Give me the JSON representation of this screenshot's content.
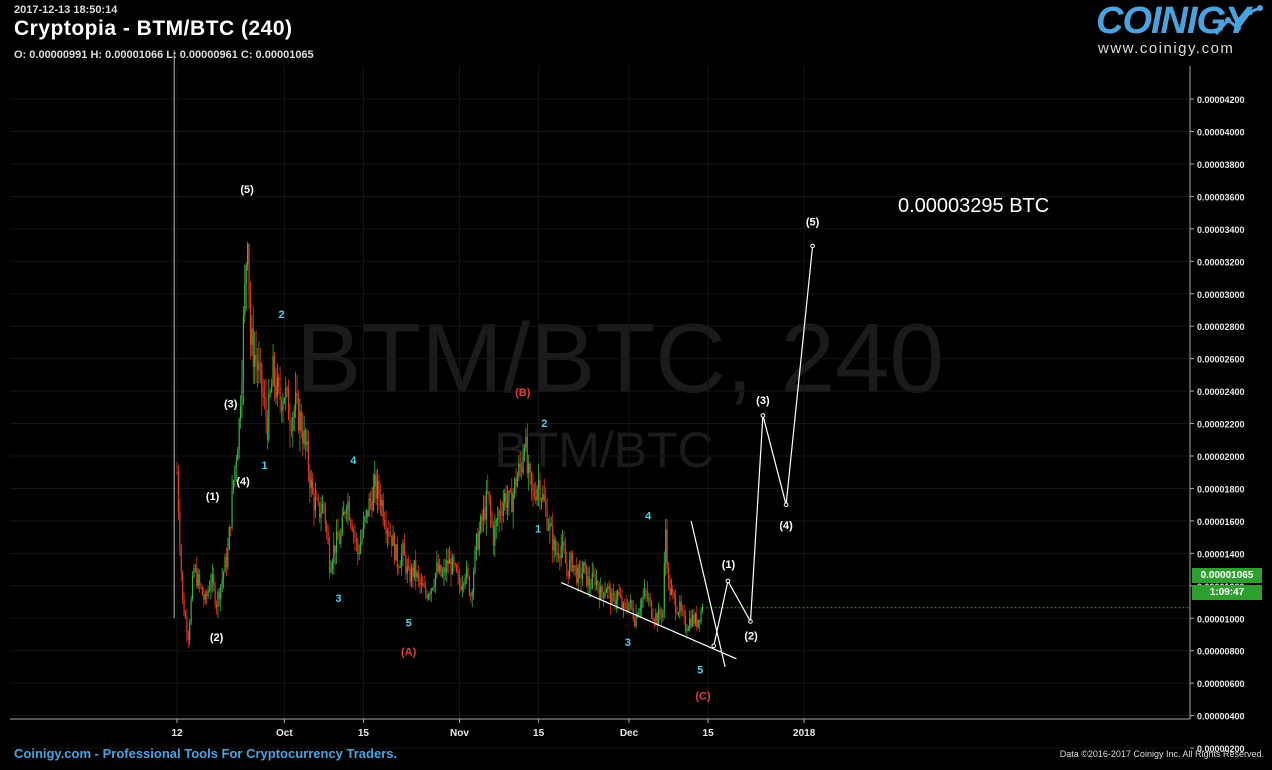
{
  "header": {
    "timestamp": "2017-12-13 18:50:14",
    "title": "Cryptopia - BTM/BTC (240)",
    "ohlc": "O: 0.00000991 H: 0.00001066 L: 0.00000961 C: 0.00001065"
  },
  "logo": {
    "word": "COINIGY",
    "url": "www.coinigy.com"
  },
  "watermark": {
    "main": "BTM/BTC, 240",
    "sub": "BTM/BTC"
  },
  "footer": {
    "left": "Coinigy.com - Professional Tools For Cryptocurrency Traders.",
    "right": "Data ©2016-2017 Coinigy Inc. All Rights Reserved."
  },
  "price_tag": {
    "current": "0.00001065",
    "countdown": "1:09:47"
  },
  "target_label": "0.00003295 BTC",
  "colors": {
    "up": "#3db33d",
    "down": "#e23a1e",
    "wave_blue": "#4fd3e6",
    "wave_red": "#e0403a",
    "accent": "#4aa3df",
    "tag": "#2ea02e"
  },
  "chart_data": {
    "type": "candlestick",
    "ylim": [
      2e-06,
      4.2e-05
    ],
    "y_ticks": [
      "0.00000200",
      "0.00000400",
      "0.00000600",
      "0.00000800",
      "0.00001000",
      "0.00001200",
      "0.00001400",
      "0.00001600",
      "0.00001800",
      "0.00002000",
      "0.00002200",
      "0.00002400",
      "0.00002600",
      "0.00002800",
      "0.00003000",
      "0.00003200",
      "0.00003400",
      "0.00003600",
      "0.00003800",
      "0.00004000",
      "0.00004200"
    ],
    "x_ticks": [
      {
        "label": "12",
        "day": 0
      },
      {
        "label": "Oct",
        "day": 19
      },
      {
        "label": "15",
        "day": 33
      },
      {
        "label": "Nov",
        "day": 50
      },
      {
        "label": "15",
        "day": 64
      },
      {
        "label": "Dec",
        "day": 80
      },
      {
        "label": "15",
        "day": 94
      },
      {
        "label": "2018",
        "day": 111
      }
    ],
    "price_path": [
      [
        0,
        19.0
      ],
      [
        1,
        11.0
      ],
      [
        2,
        9.0
      ],
      [
        3,
        13.0
      ],
      [
        5,
        11.0
      ],
      [
        6,
        12.5
      ],
      [
        7,
        11.0
      ],
      [
        8,
        12.5
      ],
      [
        9,
        14.0
      ],
      [
        10,
        18.5
      ],
      [
        11,
        22.0
      ],
      [
        12,
        30.0
      ],
      [
        12.5,
        34.5
      ],
      [
        13,
        27.0
      ],
      [
        14,
        26.0
      ],
      [
        15,
        24.0
      ],
      [
        16,
        22.0
      ],
      [
        17,
        25.0
      ],
      [
        18,
        23.5
      ],
      [
        19,
        24.0
      ],
      [
        20,
        22.5
      ],
      [
        21,
        23.0
      ],
      [
        22,
        22.0
      ],
      [
        23,
        20.0
      ],
      [
        24,
        17.5
      ],
      [
        25,
        16.5
      ],
      [
        26,
        17.0
      ],
      [
        27,
        13.5
      ],
      [
        28,
        14.5
      ],
      [
        29,
        15.0
      ],
      [
        30,
        17.5
      ],
      [
        31,
        16.0
      ],
      [
        32,
        14.0
      ],
      [
        33,
        15.5
      ],
      [
        34,
        17.0
      ],
      [
        35,
        18.0
      ],
      [
        36,
        17.5
      ],
      [
        37,
        16.0
      ],
      [
        38,
        15.0
      ],
      [
        39,
        13.5
      ],
      [
        40,
        14.0
      ],
      [
        41,
        12.5
      ],
      [
        42,
        13.0
      ],
      [
        43,
        12.0
      ],
      [
        44,
        11.5
      ],
      [
        45,
        12.0
      ],
      [
        46,
        13.0
      ],
      [
        47,
        12.5
      ],
      [
        48,
        13.5
      ],
      [
        49,
        13.0
      ],
      [
        50,
        12.0
      ],
      [
        51,
        13.0
      ],
      [
        52,
        11.5
      ],
      [
        53,
        14.5
      ],
      [
        54,
        16.0
      ],
      [
        55,
        17.5
      ],
      [
        56,
        15.0
      ],
      [
        57,
        16.5
      ],
      [
        58,
        17.5
      ],
      [
        59,
        17.0
      ],
      [
        60,
        18.5
      ],
      [
        61,
        19.5
      ],
      [
        61.5,
        21.5
      ],
      [
        62,
        19.0
      ],
      [
        63,
        17.5
      ],
      [
        64,
        18.5
      ],
      [
        65,
        17.0
      ],
      [
        66,
        15.5
      ],
      [
        67,
        14.0
      ],
      [
        68,
        14.5
      ],
      [
        69,
        13.0
      ],
      [
        70,
        13.5
      ],
      [
        71,
        12.5
      ],
      [
        72,
        13.0
      ],
      [
        73,
        12.0
      ],
      [
        74,
        12.5
      ],
      [
        75,
        11.5
      ],
      [
        76,
        12.0
      ],
      [
        77,
        11.0
      ],
      [
        78,
        11.5
      ],
      [
        79,
        10.5
      ],
      [
        80,
        11.0
      ],
      [
        81,
        10.0
      ],
      [
        82,
        11.0
      ],
      [
        83,
        11.5
      ],
      [
        84,
        10.5
      ],
      [
        85,
        10.0
      ],
      [
        86,
        10.5
      ],
      [
        86.5,
        15.5
      ],
      [
        87,
        12.0
      ],
      [
        88,
        11.0
      ],
      [
        89,
        10.5
      ],
      [
        90,
        9.5
      ],
      [
        91,
        10.0
      ],
      [
        92,
        9.8
      ],
      [
        93,
        10.65
      ]
    ],
    "wave_lines": [
      {
        "points": [
          [
            91,
            16.0
          ],
          [
            97,
            7.0
          ]
        ],
        "color": "#ffffff"
      },
      {
        "points": [
          [
            68,
            12.2
          ],
          [
            99,
            7.5
          ]
        ],
        "color": "#ffffff"
      },
      {
        "points": [
          [
            95,
            8.3
          ],
          [
            97.5,
            12.3
          ],
          [
            101.5,
            9.8
          ],
          [
            103.7,
            22.5
          ],
          [
            107.8,
            17.0
          ],
          [
            112.5,
            32.95
          ]
        ],
        "color": "#ffffff"
      }
    ],
    "wave_labels": [
      {
        "text": "(5)",
        "day": 12.4,
        "price": 36.2,
        "color": "#ffffff"
      },
      {
        "text": "(1)",
        "day": 6.3,
        "price": 17.3,
        "color": "#ffffff"
      },
      {
        "text": "(2)",
        "day": 7.0,
        "price": 8.6,
        "color": "#ffffff"
      },
      {
        "text": "(3)",
        "day": 9.5,
        "price": 23.0,
        "color": "#ffffff"
      },
      {
        "text": "(4)",
        "day": 11.7,
        "price": 18.2,
        "color": "#ffffff"
      },
      {
        "text": "1",
        "day": 15.5,
        "price": 19.2,
        "color": "#4fd3e6"
      },
      {
        "text": "2",
        "day": 18.5,
        "price": 28.5,
        "color": "#4fd3e6"
      },
      {
        "text": "3",
        "day": 28.6,
        "price": 11.0,
        "color": "#4fd3e6"
      },
      {
        "text": "4",
        "day": 31.2,
        "price": 19.5,
        "color": "#4fd3e6"
      },
      {
        "text": "5",
        "day": 41.0,
        "price": 9.5,
        "color": "#4fd3e6"
      },
      {
        "text": "(A)",
        "day": 41.0,
        "price": 7.7,
        "color": "#e0403a"
      },
      {
        "text": "(B)",
        "day": 61.2,
        "price": 23.7,
        "color": "#e0403a"
      },
      {
        "text": "1",
        "day": 63.9,
        "price": 15.3,
        "color": "#4fd3e6"
      },
      {
        "text": "2",
        "day": 65.0,
        "price": 21.8,
        "color": "#4fd3e6"
      },
      {
        "text": "3",
        "day": 79.8,
        "price": 8.3,
        "color": "#4fd3e6"
      },
      {
        "text": "4",
        "day": 83.4,
        "price": 16.1,
        "color": "#4fd3e6"
      },
      {
        "text": "5",
        "day": 92.6,
        "price": 6.6,
        "color": "#4fd3e6"
      },
      {
        "text": "(C)",
        "day": 93.1,
        "price": 5.0,
        "color": "#e0403a"
      },
      {
        "text": "(1)",
        "day": 97.6,
        "price": 13.1,
        "color": "#ffffff"
      },
      {
        "text": "(2)",
        "day": 101.6,
        "price": 8.7,
        "color": "#ffffff"
      },
      {
        "text": "(3)",
        "day": 103.7,
        "price": 23.2,
        "color": "#ffffff"
      },
      {
        "text": "(4)",
        "day": 107.8,
        "price": 15.5,
        "color": "#ffffff"
      },
      {
        "text": "(5)",
        "day": 112.5,
        "price": 34.2,
        "color": "#ffffff"
      }
    ]
  }
}
